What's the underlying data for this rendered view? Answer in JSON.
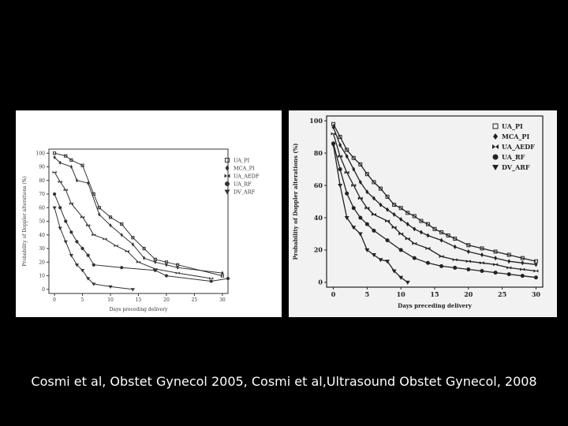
{
  "caption": "Cosmi et al, Obstet Gynecol 2005, Cosmi et al,Ultrasound Obstet Gynecol, 2008",
  "chart_data": [
    {
      "type": "line",
      "xlabel": "Days preceding delivery",
      "ylabel": "Probability of Doppler alterations (%)",
      "xlim": [
        -1,
        31
      ],
      "ylim": [
        -3,
        103
      ],
      "xticks": [
        0,
        5,
        10,
        15,
        20,
        25,
        30
      ],
      "yticks": [
        0,
        10,
        20,
        30,
        40,
        50,
        60,
        70,
        80,
        90,
        100
      ],
      "legend": [
        "UA_PI",
        "MCA_PI",
        "UA_AEDF",
        "UA_RF",
        "DV_ARF"
      ],
      "legend_position": "top-right",
      "series": [
        {
          "name": "UA_PI",
          "x": [
            0,
            2,
            3,
            5,
            7,
            8,
            10,
            12,
            14,
            16,
            18,
            20,
            22,
            30
          ],
          "y": [
            100,
            98,
            95,
            91,
            70,
            60,
            53,
            48,
            38,
            30,
            22,
            20,
            18,
            10
          ]
        },
        {
          "name": "MCA_PI",
          "x": [
            0,
            1,
            3,
            4,
            6,
            8,
            10,
            12,
            14,
            16,
            18,
            20,
            22,
            30
          ],
          "y": [
            97,
            93,
            90,
            80,
            78,
            55,
            47,
            40,
            33,
            23,
            20,
            18,
            16,
            12
          ]
        },
        {
          "name": "UA_AEDF",
          "x": [
            0,
            1,
            2,
            3,
            5,
            6,
            7,
            9,
            11,
            13,
            15,
            18,
            22,
            28
          ],
          "y": [
            86,
            79,
            73,
            63,
            53,
            47,
            40,
            37,
            32,
            28,
            20,
            15,
            12,
            8
          ]
        },
        {
          "name": "UA_RF",
          "x": [
            0,
            1,
            2,
            3,
            4,
            5,
            6,
            7,
            12,
            18,
            20,
            28,
            31
          ],
          "y": [
            70,
            60,
            50,
            42,
            35,
            30,
            25,
            18,
            16,
            14,
            10,
            6,
            8
          ]
        },
        {
          "name": "DV_ARF",
          "x": [
            0,
            1,
            2,
            3,
            4,
            5,
            6,
            7,
            10,
            14
          ],
          "y": [
            60,
            45,
            35,
            25,
            18,
            14,
            8,
            4,
            2,
            0
          ]
        }
      ]
    },
    {
      "type": "line",
      "xlabel": "Days preceding delivery",
      "ylabel": "Probability of Doppler alterations (%)",
      "xlim": [
        -1,
        31
      ],
      "ylim": [
        -3,
        103
      ],
      "xticks": [
        0,
        5,
        10,
        15,
        20,
        25,
        30
      ],
      "yticks": [
        0,
        20,
        40,
        60,
        80,
        100
      ],
      "legend": [
        "UA_PI",
        "MCA_PI",
        "UA_AEDF",
        "UA_RF",
        "DV_ARF"
      ],
      "legend_position": "top-right",
      "series": [
        {
          "name": "UA_PI",
          "x": [
            0,
            1,
            2,
            3,
            4,
            5,
            6,
            7,
            8,
            9,
            10,
            11,
            12,
            13,
            14,
            15,
            16,
            17,
            18,
            20,
            22,
            24,
            26,
            28,
            30
          ],
          "y": [
            98,
            90,
            82,
            77,
            73,
            67,
            62,
            58,
            53,
            48,
            46,
            43,
            41,
            38,
            36,
            33,
            31,
            29,
            27,
            23,
            21,
            19,
            17,
            15,
            13
          ]
        },
        {
          "name": "MCA_PI",
          "x": [
            0,
            1,
            2,
            3,
            4,
            5,
            6,
            7,
            8,
            9,
            10,
            11,
            12,
            13,
            14,
            16,
            18,
            20,
            22,
            24,
            26,
            28,
            30
          ],
          "y": [
            96,
            85,
            78,
            70,
            62,
            56,
            52,
            48,
            45,
            42,
            39,
            36,
            33,
            31,
            29,
            26,
            22,
            19,
            17,
            15,
            13,
            12,
            11
          ]
        },
        {
          "name": "UA_AEDF",
          "x": [
            0,
            1,
            2,
            3,
            4,
            5,
            6,
            8,
            9,
            10,
            11,
            12,
            14,
            16,
            18,
            20,
            22,
            24,
            26,
            28,
            30
          ],
          "y": [
            92,
            78,
            68,
            60,
            52,
            46,
            42,
            38,
            34,
            30,
            27,
            24,
            21,
            16,
            14,
            13,
            12,
            11,
            9,
            8,
            7
          ]
        },
        {
          "name": "UA_RF",
          "x": [
            0,
            1,
            2,
            3,
            4,
            5,
            6,
            8,
            10,
            12,
            14,
            16,
            18,
            20,
            22,
            24,
            26,
            28,
            30
          ],
          "y": [
            86,
            70,
            55,
            46,
            40,
            36,
            32,
            26,
            20,
            15,
            12,
            10,
            9,
            8,
            7,
            6,
            5,
            4,
            3
          ]
        },
        {
          "name": "DV_ARF",
          "x": [
            0,
            1,
            2,
            3,
            4,
            5,
            6,
            7,
            8,
            9,
            10,
            11
          ],
          "y": [
            85,
            60,
            40,
            34,
            30,
            20,
            17,
            14,
            13,
            7,
            3,
            0
          ]
        }
      ]
    }
  ]
}
